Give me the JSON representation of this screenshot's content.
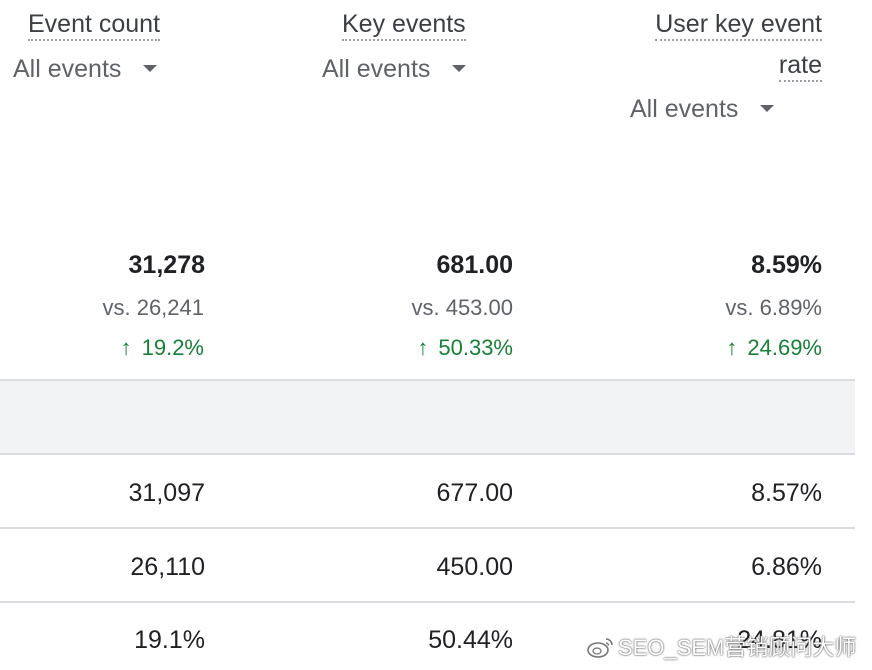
{
  "columns": [
    {
      "title": "Event count",
      "filter": "All events"
    },
    {
      "title": "Key events",
      "filter": "All events"
    },
    {
      "title_line1": "User key event",
      "title_line2": "rate",
      "filter": "All events"
    }
  ],
  "totals": [
    {
      "value": "31,278",
      "vs": "vs. 26,241",
      "change": "19.2%",
      "direction": "up"
    },
    {
      "value": "681.00",
      "vs": "vs. 453.00",
      "change": "50.33%",
      "direction": "up"
    },
    {
      "value": "8.59%",
      "vs": "vs. 6.89%",
      "change": "24.69%",
      "direction": "up"
    }
  ],
  "rows": [
    [
      "31,097",
      "677.00",
      "8.57%"
    ],
    [
      "26,110",
      "450.00",
      "6.86%"
    ],
    [
      "19.1%",
      "50.44%",
      "24.81%"
    ]
  ],
  "watermark": "SEO_SEM营销顾问大师",
  "colors": {
    "positive": "#188038",
    "band": "#f1f3f4",
    "divider": "#dadce0"
  },
  "icons": {
    "up": "arrow-up-icon",
    "dropdown": "caret-down-icon",
    "watermark_logo": "weibo-logo-icon"
  }
}
